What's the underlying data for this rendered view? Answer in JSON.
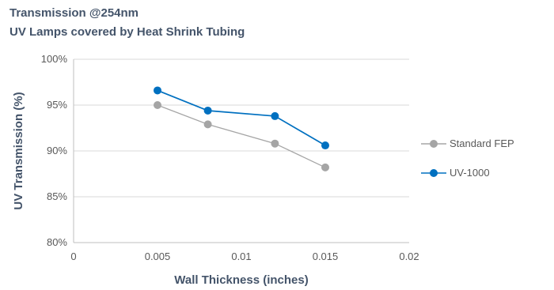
{
  "chart_data": {
    "type": "line",
    "title": "Transmission @254nm",
    "subtitle": "UV Lamps covered by Heat Shrink Tubing",
    "xlabel": "Wall Thickness (inches)",
    "ylabel": "UV Transmission (%)",
    "xlim": [
      0,
      0.02
    ],
    "ylim": [
      80,
      100
    ],
    "x_ticks": [
      "0",
      "0.005",
      "0.01",
      "0.015",
      "0.02"
    ],
    "y_ticks": [
      "80%",
      "85%",
      "90%",
      "95%",
      "100%"
    ],
    "grid": "horizontal",
    "legend_position": "right",
    "series": [
      {
        "name": "Standard FEP",
        "color": "#a5a5a5",
        "x": [
          0.005,
          0.008,
          0.012,
          0.015
        ],
        "y": [
          95.0,
          92.9,
          90.8,
          88.2
        ]
      },
      {
        "name": "UV-1000",
        "color": "#0070c0",
        "x": [
          0.005,
          0.008,
          0.012,
          0.015
        ],
        "y": [
          96.6,
          94.4,
          93.8,
          90.6
        ]
      }
    ]
  }
}
